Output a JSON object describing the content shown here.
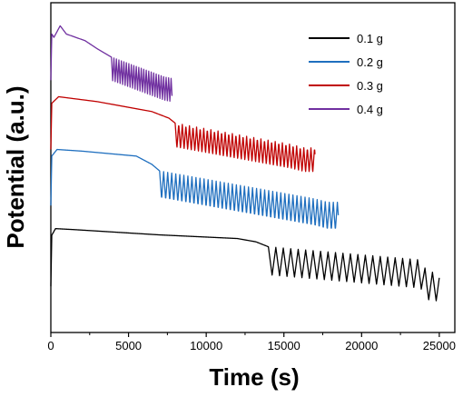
{
  "chart_data": {
    "type": "line",
    "xlabel": "Time (s)",
    "ylabel": "Potential (a.u.)",
    "xlim": [
      0,
      26000
    ],
    "x_ticks": [
      "0",
      "5000",
      "10000",
      "15000",
      "20000",
      "25000"
    ],
    "y_tick_labels": "none",
    "grid": false,
    "legend_position": "top-right",
    "series": [
      {
        "name": "0.1 g",
        "color": "#000000",
        "offset": 0.14,
        "plateau_end_x": 14000,
        "end_x": 25000,
        "osc_amplitude": 0.085,
        "osc_period": 480,
        "samples": [
          [
            0,
            0.0
          ],
          [
            60,
            0.155
          ],
          [
            300,
            0.175
          ],
          [
            1500,
            0.172
          ],
          [
            7000,
            0.156
          ],
          [
            12000,
            0.145
          ],
          [
            13200,
            0.135
          ],
          [
            14000,
            0.12
          ],
          [
            23800,
            0.08
          ],
          [
            24200,
            0.045
          ],
          [
            25000,
            0.04
          ]
        ]
      },
      {
        "name": "0.2 g",
        "color": "#1f6fbf",
        "offset": 0.385,
        "plateau_end_x": 7000,
        "end_x": 18500,
        "osc_amplitude": 0.085,
        "osc_period": 260,
        "samples": [
          [
            0,
            0.0
          ],
          [
            60,
            0.15
          ],
          [
            400,
            0.17
          ],
          [
            2000,
            0.165
          ],
          [
            5500,
            0.15
          ],
          [
            6500,
            0.125
          ],
          [
            7000,
            0.105
          ],
          [
            17000,
            0.02
          ],
          [
            17800,
            0.01
          ],
          [
            18500,
            0.01
          ]
        ]
      },
      {
        "name": "0.3 g",
        "color": "#c00000",
        "offset": 0.555,
        "plateau_end_x": 8000,
        "end_x": 17000,
        "osc_amplitude": 0.075,
        "osc_period": 230,
        "samples": [
          [
            0,
            0.0
          ],
          [
            60,
            0.14
          ],
          [
            500,
            0.16
          ],
          [
            3000,
            0.145
          ],
          [
            6500,
            0.115
          ],
          [
            7600,
            0.095
          ],
          [
            8000,
            0.08
          ],
          [
            15500,
            0.015
          ],
          [
            16300,
            0.005
          ],
          [
            17000,
            0.005
          ]
        ]
      },
      {
        "name": "0.4 g",
        "color": "#7030a0",
        "offset": 0.765,
        "plateau_end_x": 3900,
        "end_x": 7800,
        "osc_amplitude": 0.07,
        "osc_period": 160,
        "samples": [
          [
            0,
            0.0
          ],
          [
            60,
            0.14
          ],
          [
            200,
            0.13
          ],
          [
            600,
            0.165
          ],
          [
            1000,
            0.14
          ],
          [
            2200,
            0.12
          ],
          [
            3000,
            0.095
          ],
          [
            3900,
            0.07
          ],
          [
            7300,
            0.01
          ],
          [
            7800,
            0.005
          ]
        ]
      }
    ]
  }
}
